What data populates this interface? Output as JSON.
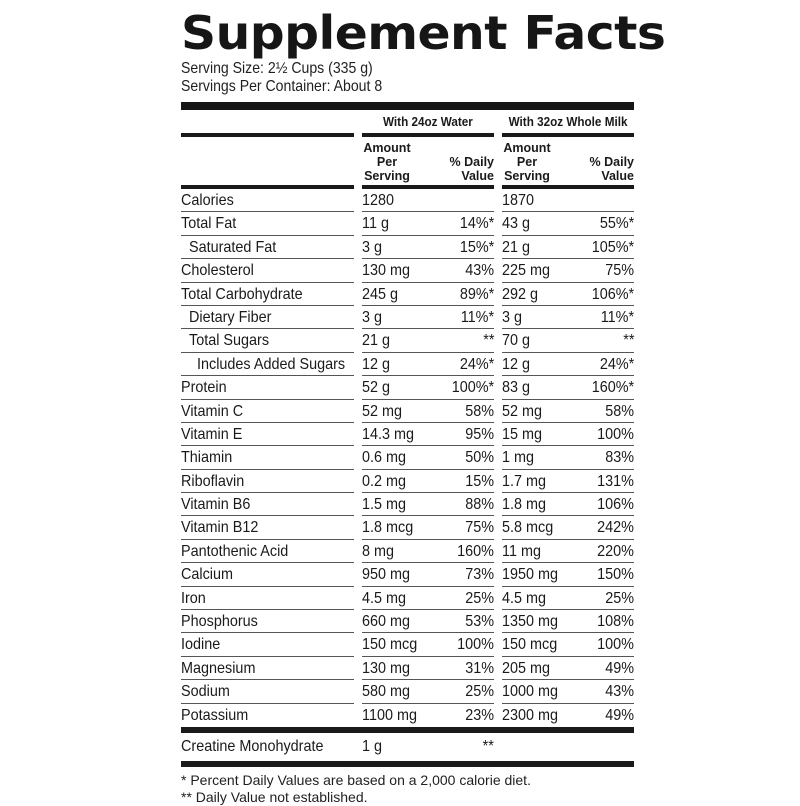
{
  "label": {
    "title": "Supplement Facts",
    "serving_size": "Serving Size: 2½ Cups (335 g)",
    "servings_per_container": "Servings Per Container: About 8"
  },
  "columns": {
    "group_a": "With 24oz Water",
    "group_b": "With 32oz Whole Milk",
    "amount_header": [
      "Amount",
      "Per",
      "Serving"
    ],
    "dv_header": [
      "% Daily",
      "Value"
    ]
  },
  "rows": [
    {
      "name": "Calories",
      "indent": 0,
      "a_amount": "1280",
      "a_dv": "",
      "b_amount": "1870",
      "b_dv": ""
    },
    {
      "name": "Total Fat",
      "indent": 0,
      "a_amount": "11 g",
      "a_dv": "14%*",
      "b_amount": "43 g",
      "b_dv": "55%*"
    },
    {
      "name": "Saturated Fat",
      "indent": 1,
      "a_amount": "3 g",
      "a_dv": "15%*",
      "b_amount": "21 g",
      "b_dv": "105%*"
    },
    {
      "name": "Cholesterol",
      "indent": 0,
      "a_amount": "130 mg",
      "a_dv": "43%",
      "b_amount": "225 mg",
      "b_dv": "75%"
    },
    {
      "name": "Total Carbohydrate",
      "indent": 0,
      "a_amount": "245 g",
      "a_dv": "89%*",
      "b_amount": "292 g",
      "b_dv": "106%*"
    },
    {
      "name": "Dietary Fiber",
      "indent": 1,
      "a_amount": "3 g",
      "a_dv": "11%*",
      "b_amount": "3 g",
      "b_dv": "11%*"
    },
    {
      "name": "Total Sugars",
      "indent": 1,
      "a_amount": "21 g",
      "a_dv": "**",
      "b_amount": "70 g",
      "b_dv": "**"
    },
    {
      "name": "Includes Added Sugars",
      "indent": 2,
      "a_amount": "12 g",
      "a_dv": "24%*",
      "b_amount": "12 g",
      "b_dv": "24%*"
    },
    {
      "name": "Protein",
      "indent": 0,
      "a_amount": "52 g",
      "a_dv": "100%*",
      "b_amount": "83 g",
      "b_dv": "160%*"
    },
    {
      "name": "Vitamin C",
      "indent": 0,
      "a_amount": "52 mg",
      "a_dv": "58%",
      "b_amount": "52 mg",
      "b_dv": "58%"
    },
    {
      "name": "Vitamin E",
      "indent": 0,
      "a_amount": "14.3 mg",
      "a_dv": "95%",
      "b_amount": "15 mg",
      "b_dv": "100%"
    },
    {
      "name": "Thiamin",
      "indent": 0,
      "a_amount": "0.6 mg",
      "a_dv": "50%",
      "b_amount": "1 mg",
      "b_dv": "83%"
    },
    {
      "name": "Riboflavin",
      "indent": 0,
      "a_amount": "0.2 mg",
      "a_dv": "15%",
      "b_amount": "1.7 mg",
      "b_dv": "131%"
    },
    {
      "name": "Vitamin B6",
      "indent": 0,
      "a_amount": "1.5 mg",
      "a_dv": "88%",
      "b_amount": "1.8 mg",
      "b_dv": "106%"
    },
    {
      "name": "Vitamin B12",
      "indent": 0,
      "a_amount": "1.8 mcg",
      "a_dv": "75%",
      "b_amount": "5.8 mcg",
      "b_dv": "242%"
    },
    {
      "name": "Pantothenic Acid",
      "indent": 0,
      "a_amount": "8 mg",
      "a_dv": "160%",
      "b_amount": "11 mg",
      "b_dv": "220%"
    },
    {
      "name": "Calcium",
      "indent": 0,
      "a_amount": "950 mg",
      "a_dv": "73%",
      "b_amount": "1950 mg",
      "b_dv": "150%"
    },
    {
      "name": "Iron",
      "indent": 0,
      "a_amount": "4.5 mg",
      "a_dv": "25%",
      "b_amount": "4.5 mg",
      "b_dv": "25%"
    },
    {
      "name": "Phosphorus",
      "indent": 0,
      "a_amount": "660 mg",
      "a_dv": "53%",
      "b_amount": "1350 mg",
      "b_dv": "108%"
    },
    {
      "name": "Iodine",
      "indent": 0,
      "a_amount": "150 mcg",
      "a_dv": "100%",
      "b_amount": "150 mcg",
      "b_dv": "100%"
    },
    {
      "name": "Magnesium",
      "indent": 0,
      "a_amount": "130 mg",
      "a_dv": "31%",
      "b_amount": "205 mg",
      "b_dv": "49%"
    },
    {
      "name": "Sodium",
      "indent": 0,
      "a_amount": "580 mg",
      "a_dv": "25%",
      "b_amount": "1000 mg",
      "b_dv": "43%"
    },
    {
      "name": "Potassium",
      "indent": 0,
      "a_amount": "1100 mg",
      "a_dv": "23%",
      "b_amount": "2300 mg",
      "b_dv": "49%"
    }
  ],
  "other_ingredients": [
    {
      "name": "Creatine Monohydrate",
      "amount": "1 g",
      "dv": "**"
    }
  ],
  "footnotes": [
    "* Percent Daily Values are based on a 2,000 calorie diet.",
    "** Daily Value not established."
  ]
}
